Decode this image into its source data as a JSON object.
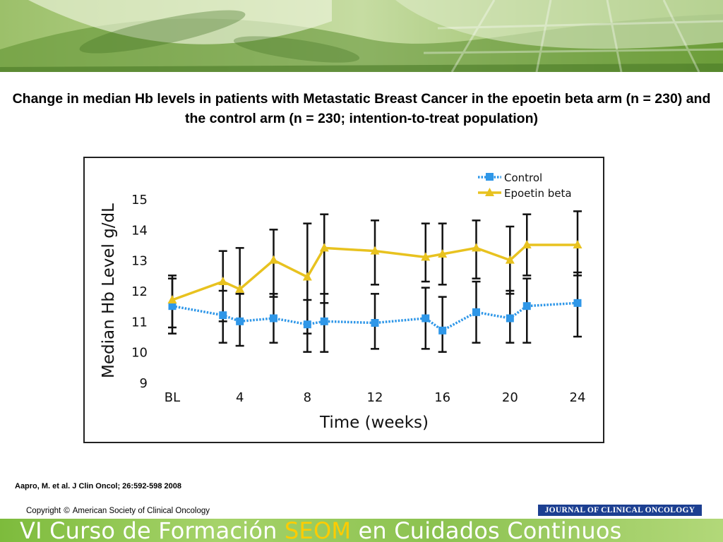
{
  "title": "Change in median Hb levels in patients with Metastatic Breast Cancer in the epoetin beta arm (n = 230) and the control arm (n = 230; intention-to-treat population)",
  "citation": "Aapro, M. et al. J Clin Oncol; 26:592-598 2008",
  "copyright": {
    "prefix": "Copyright",
    "symbol": "©",
    "holder": "American Society of Clinical Oncology"
  },
  "journal_logo": "JOURNAL OF CLINICAL ONCOLOGY",
  "footer": {
    "part1": "VI Curso de Formación ",
    "accent": "SEOM",
    "part2": " en Cuidados Continuos"
  },
  "colors": {
    "control": "#2f97e8",
    "epoetin": "#e8c21f",
    "errorbar": "#111111",
    "footer_accent": "#ffcc00"
  },
  "chart_data": {
    "type": "line",
    "xlabel": "Time (weeks)",
    "ylabel": "Median Hb Level g/dL",
    "xlim": [
      0,
      24
    ],
    "ylim": [
      9,
      15
    ],
    "xticks": [
      {
        "x": 0,
        "label": "BL"
      },
      {
        "x": 4,
        "label": "4"
      },
      {
        "x": 8,
        "label": "8"
      },
      {
        "x": 12,
        "label": "12"
      },
      {
        "x": 16,
        "label": "16"
      },
      {
        "x": 20,
        "label": "20"
      },
      {
        "x": 24,
        "label": "24"
      }
    ],
    "yticks": [
      9,
      10,
      11,
      12,
      13,
      14,
      15
    ],
    "grid": false,
    "legend": "top-right",
    "series": [
      {
        "name": "Control",
        "marker": "square",
        "line": "dotted",
        "x": [
          0,
          3,
          4,
          6,
          8,
          9,
          12,
          15,
          16,
          18,
          20,
          21,
          24
        ],
        "values": [
          11.5,
          11.2,
          11.0,
          11.1,
          10.9,
          11.0,
          10.95,
          11.1,
          10.7,
          11.3,
          11.1,
          11.5,
          11.6
        ],
        "lower": [
          10.6,
          10.3,
          10.2,
          10.3,
          10.0,
          10.0,
          10.1,
          10.1,
          10.0,
          10.3,
          10.3,
          10.3,
          10.5
        ],
        "upper": [
          12.4,
          12.0,
          11.9,
          11.9,
          11.7,
          11.9,
          11.9,
          12.1,
          11.8,
          12.3,
          12.0,
          12.4,
          12.6
        ]
      },
      {
        "name": "Epoetin beta",
        "marker": "triangle",
        "line": "solid",
        "x": [
          0,
          3,
          4,
          6,
          8,
          9,
          12,
          15,
          16,
          18,
          20,
          21,
          24
        ],
        "values": [
          11.7,
          12.3,
          12.05,
          13.0,
          12.45,
          13.4,
          13.3,
          13.1,
          13.2,
          13.4,
          13.0,
          13.5,
          13.5
        ],
        "lower": [
          10.8,
          11.0,
          11.9,
          11.8,
          10.6,
          11.6,
          12.2,
          12.3,
          12.2,
          12.4,
          11.9,
          12.5,
          12.5
        ],
        "upper": [
          12.5,
          13.3,
          13.4,
          14.0,
          14.2,
          14.5,
          14.3,
          14.2,
          14.2,
          14.3,
          14.1,
          14.5,
          14.6
        ]
      }
    ]
  }
}
